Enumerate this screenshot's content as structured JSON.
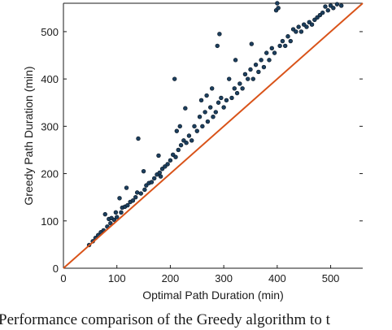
{
  "chart_data": {
    "type": "scatter",
    "xlabel": "Optimal Path Duration (min)",
    "ylabel": "Greedy Path Duration (min)",
    "xlim": [
      0,
      560
    ],
    "ylim": [
      0,
      560
    ],
    "x_ticks": [
      "0",
      "100",
      "200",
      "300",
      "400",
      "500"
    ],
    "y_ticks": [
      "0",
      "100",
      "200",
      "300",
      "400",
      "500"
    ],
    "x_tick_values": [
      0,
      100,
      200,
      300,
      400,
      500
    ],
    "y_tick_values": [
      0,
      100,
      200,
      300,
      400,
      500
    ],
    "grid": false,
    "reference_line": {
      "from": [
        0,
        0
      ],
      "to": [
        560,
        560
      ],
      "color": "#d95319"
    },
    "point_color": "#1c3f5e",
    "points": [
      [
        48,
        49
      ],
      [
        55,
        57
      ],
      [
        60,
        64
      ],
      [
        65,
        70
      ],
      [
        70,
        76
      ],
      [
        75,
        80
      ],
      [
        78,
        114
      ],
      [
        82,
        88
      ],
      [
        85,
        104
      ],
      [
        88,
        95
      ],
      [
        90,
        106
      ],
      [
        95,
        102
      ],
      [
        98,
        118
      ],
      [
        100,
        108
      ],
      [
        105,
        148
      ],
      [
        108,
        118
      ],
      [
        110,
        128
      ],
      [
        115,
        130
      ],
      [
        118,
        170
      ],
      [
        120,
        133
      ],
      [
        125,
        140
      ],
      [
        130,
        143
      ],
      [
        135,
        150
      ],
      [
        138,
        160
      ],
      [
        140,
        274
      ],
      [
        145,
        158
      ],
      [
        150,
        205
      ],
      [
        152,
        166
      ],
      [
        155,
        175
      ],
      [
        160,
        180
      ],
      [
        165,
        182
      ],
      [
        170,
        190
      ],
      [
        175,
        198
      ],
      [
        178,
        238
      ],
      [
        180,
        202
      ],
      [
        182,
        194
      ],
      [
        185,
        210
      ],
      [
        190,
        215
      ],
      [
        195,
        220
      ],
      [
        200,
        228
      ],
      [
        205,
        240
      ],
      [
        208,
        400
      ],
      [
        210,
        235
      ],
      [
        212,
        290
      ],
      [
        215,
        250
      ],
      [
        218,
        300
      ],
      [
        220,
        260
      ],
      [
        225,
        270
      ],
      [
        228,
        338
      ],
      [
        230,
        265
      ],
      [
        235,
        280
      ],
      [
        240,
        270
      ],
      [
        245,
        300
      ],
      [
        250,
        290
      ],
      [
        255,
        320
      ],
      [
        258,
        355
      ],
      [
        260,
        300
      ],
      [
        265,
        330
      ],
      [
        268,
        365
      ],
      [
        270,
        310
      ],
      [
        275,
        340
      ],
      [
        278,
        380
      ],
      [
        280,
        320
      ],
      [
        285,
        330
      ],
      [
        288,
        470
      ],
      [
        290,
        350
      ],
      [
        292,
        495
      ],
      [
        295,
        360
      ],
      [
        300,
        340
      ],
      [
        305,
        355
      ],
      [
        310,
        400
      ],
      [
        315,
        360
      ],
      [
        320,
        380
      ],
      [
        322,
        440
      ],
      [
        325,
        370
      ],
      [
        330,
        390
      ],
      [
        335,
        380
      ],
      [
        340,
        410
      ],
      [
        345,
        400
      ],
      [
        350,
        420
      ],
      [
        352,
        474
      ],
      [
        355,
        400
      ],
      [
        360,
        430
      ],
      [
        365,
        415
      ],
      [
        370,
        440
      ],
      [
        375,
        425
      ],
      [
        380,
        455
      ],
      [
        385,
        440
      ],
      [
        390,
        465
      ],
      [
        395,
        455
      ],
      [
        398,
        545
      ],
      [
        400,
        560
      ],
      [
        402,
        550
      ],
      [
        405,
        470
      ],
      [
        410,
        480
      ],
      [
        415,
        470
      ],
      [
        420,
        490
      ],
      [
        425,
        480
      ],
      [
        430,
        505
      ],
      [
        435,
        500
      ],
      [
        440,
        510
      ],
      [
        445,
        500
      ],
      [
        450,
        515
      ],
      [
        455,
        510
      ],
      [
        460,
        520
      ],
      [
        465,
        515
      ],
      [
        470,
        525
      ],
      [
        475,
        530
      ],
      [
        480,
        535
      ],
      [
        485,
        540
      ],
      [
        490,
        553
      ],
      [
        495,
        545
      ],
      [
        500,
        555
      ],
      [
        505,
        550
      ],
      [
        512,
        558
      ],
      [
        520,
        555
      ]
    ]
  },
  "caption": "Performance comparison of the Greedy algorithm to t"
}
